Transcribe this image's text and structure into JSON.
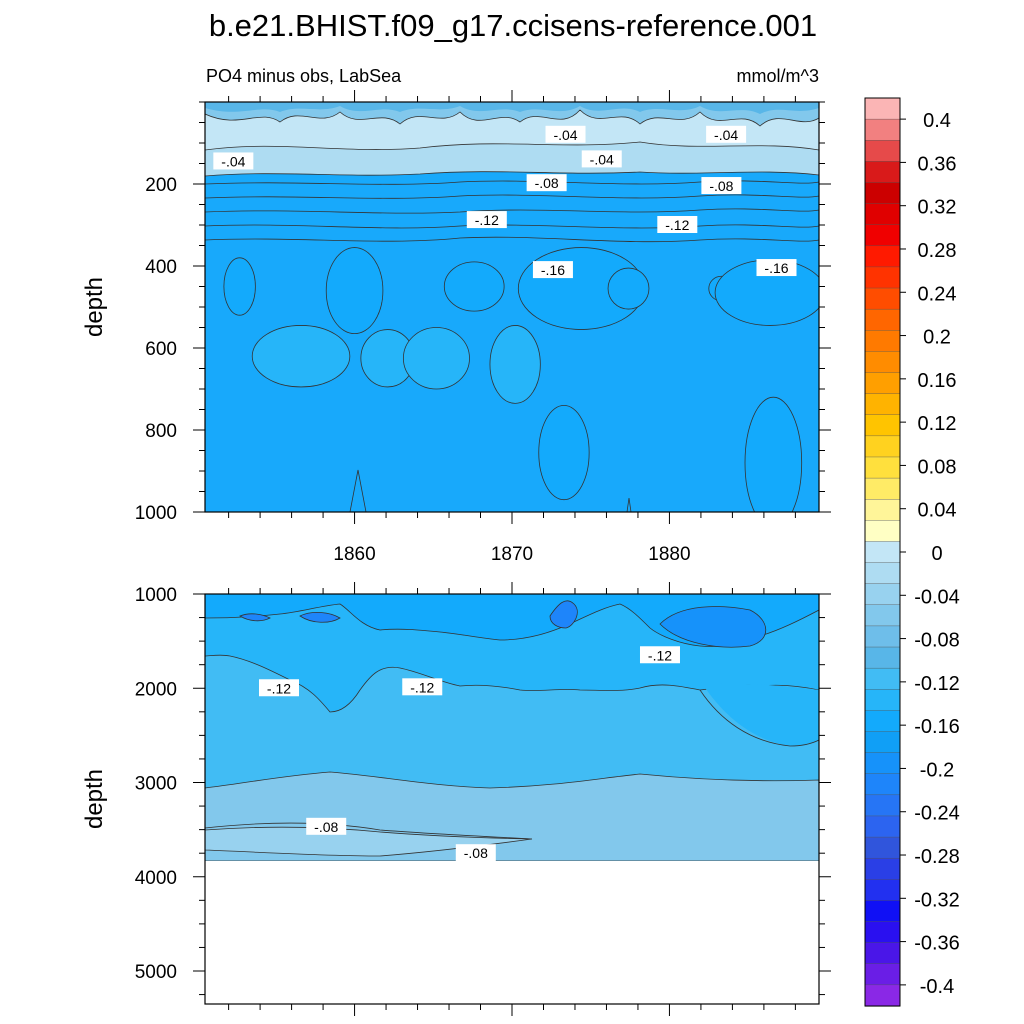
{
  "chart_data": [
    {
      "type": "heatmap",
      "panel": "upper",
      "title": "b.e21.BHIST.f09_g17.ccisens-reference.001",
      "subtitle_left": "PO4 minus obs, LabSea",
      "subtitle_right": "mmol/m^3",
      "xlabel": "",
      "ylabel": "depth",
      "xlim": [
        1850.5,
        1889.5
      ],
      "ylim": [
        1000,
        0
      ],
      "xticks": [
        1860,
        1870,
        1880
      ],
      "xtick_labels": [
        "1860",
        "1870",
        "1880"
      ],
      "yticks": [
        200,
        400,
        600,
        800,
        1000
      ],
      "ytick_labels": [
        "200",
        "400",
        "600",
        "800",
        "1000"
      ],
      "contour_labels": [
        {
          "text": "-.04",
          "x": 1852.3,
          "depth": 145
        },
        {
          "text": "-.04",
          "x": 1873.4,
          "depth": 80
        },
        {
          "text": "-.04",
          "x": 1875.7,
          "depth": 140
        },
        {
          "text": "-.04",
          "x": 1883.6,
          "depth": 80
        },
        {
          "text": "-.08",
          "x": 1872.2,
          "depth": 198
        },
        {
          "text": "-.08",
          "x": 1883.3,
          "depth": 205
        },
        {
          "text": "-.12",
          "x": 1868.4,
          "depth": 288
        },
        {
          "text": "-.12",
          "x": 1880.5,
          "depth": 300
        },
        {
          "text": "-.16",
          "x": 1872.6,
          "depth": 410
        },
        {
          "text": "-.16",
          "x": 1886.8,
          "depth": 405
        }
      ],
      "zones": [
        {
          "level": -0.08,
          "top": 170,
          "bottom": 220
        },
        {
          "level": -0.1,
          "top": 220,
          "bottom": 270
        },
        {
          "level": -0.12,
          "top": 270,
          "bottom": 320
        },
        {
          "level": -0.14,
          "top": 320,
          "bottom": 1000
        }
      ],
      "anomaly_patches": [
        {
          "level": -0.16,
          "x": 1852.7,
          "depth": 450,
          "x_halfwidth": 1.0,
          "depth_halfwidth": 70
        },
        {
          "level": -0.16,
          "x": 1860.0,
          "depth": 460,
          "x_halfwidth": 1.8,
          "depth_halfwidth": 105
        },
        {
          "level": -0.16,
          "x": 1867.6,
          "depth": 450,
          "x_halfwidth": 1.9,
          "depth_halfwidth": 60
        },
        {
          "level": -0.16,
          "x": 1874.4,
          "depth": 455,
          "x_halfwidth": 4.0,
          "depth_halfwidth": 100
        },
        {
          "level": -0.16,
          "x": 1877.4,
          "depth": 455,
          "x_halfwidth": 1.3,
          "depth_halfwidth": 50
        },
        {
          "level": -0.16,
          "x": 1883.3,
          "depth": 455,
          "x_halfwidth": 0.8,
          "depth_halfwidth": 30
        },
        {
          "level": -0.16,
          "x": 1886.4,
          "depth": 465,
          "x_halfwidth": 3.5,
          "depth_halfwidth": 80
        },
        {
          "level": -0.14,
          "x": 1856.6,
          "depth": 620,
          "x_halfwidth": 3.1,
          "depth_halfwidth": 75
        },
        {
          "level": -0.14,
          "x": 1862.1,
          "depth": 625,
          "x_halfwidth": 1.7,
          "depth_halfwidth": 70
        },
        {
          "level": -0.14,
          "x": 1865.2,
          "depth": 625,
          "x_halfwidth": 2.1,
          "depth_halfwidth": 75
        },
        {
          "level": -0.14,
          "x": 1870.2,
          "depth": 640,
          "x_halfwidth": 1.6,
          "depth_halfwidth": 95
        },
        {
          "level": -0.16,
          "x": 1873.3,
          "depth": 855,
          "x_halfwidth": 1.6,
          "depth_halfwidth": 115
        },
        {
          "level": -0.16,
          "x": 1886.6,
          "depth": 880,
          "x_halfwidth": 1.8,
          "depth_halfwidth": 160
        }
      ]
    },
    {
      "type": "heatmap",
      "panel": "lower",
      "xlabel": "",
      "ylabel": "depth",
      "xlim": [
        1850.5,
        1889.5
      ],
      "ylim": [
        5350,
        1000
      ],
      "xticks": [
        1860,
        1870,
        1880
      ],
      "yticks": [
        1000,
        2000,
        3000,
        4000,
        5000
      ],
      "ytick_labels": [
        "1000",
        "2000",
        "3000",
        "4000",
        "5000"
      ],
      "data_bottom_depth": 3870,
      "contour_labels": [
        {
          "text": "-.12",
          "x": 1855.2,
          "depth": 2000
        },
        {
          "text": "-.12",
          "x": 1864.3,
          "depth": 1990
        },
        {
          "text": "-.12",
          "x": 1879.4,
          "depth": 1650
        },
        {
          "text": "-.08",
          "x": 1858.2,
          "depth": 3470
        },
        {
          "text": "-.08",
          "x": 1867.7,
          "depth": 3750
        }
      ],
      "zones": [
        {
          "level": -0.16,
          "top": 1000,
          "bottom": 1700
        },
        {
          "level": -0.14,
          "top": 1700,
          "bottom": 2100
        },
        {
          "level": -0.12,
          "top": 2100,
          "bottom": 3050
        },
        {
          "level": -0.08,
          "top": 3050,
          "bottom": 3870
        }
      ]
    }
  ],
  "colorbar": {
    "tick_labels": [
      "0.4",
      "0.36",
      "0.32",
      "0.28",
      "0.24",
      "0.2",
      "0.16",
      "0.12",
      "0.08",
      "0.04",
      "0",
      "-0.04",
      "-0.08",
      "-0.12",
      "-0.16",
      "-0.2",
      "-0.24",
      "-0.28",
      "-0.32",
      "-0.36",
      "-0.4"
    ],
    "colors": [
      "#fbb5b5",
      "#f28080",
      "#e64a4a",
      "#d91a1a",
      "#cc0000",
      "#e00000",
      "#f00000",
      "#ff1a00",
      "#ff3300",
      "#ff4d00",
      "#ff6600",
      "#ff7a00",
      "#ff8c00",
      "#ff9f00",
      "#ffb300",
      "#ffc400",
      "#ffd21f",
      "#ffe03d",
      "#ffeb66",
      "#fff599",
      "#ffffc4",
      "#c3e6f6",
      "#aedcf2",
      "#98d2ef",
      "#82c8ec",
      "#6ebeea",
      "#58b6e8",
      "#41bcf4",
      "#26b5f9",
      "#13aafc",
      "#109ff6",
      "#1692fa",
      "#1e85fa",
      "#2675f5",
      "#2c64f0",
      "#3055dc",
      "#2a3fe6",
      "#2230f0",
      "#1010f5",
      "#2a10f0",
      "#4a16e8",
      "#6a1ee6",
      "#8a28e6"
    ]
  }
}
